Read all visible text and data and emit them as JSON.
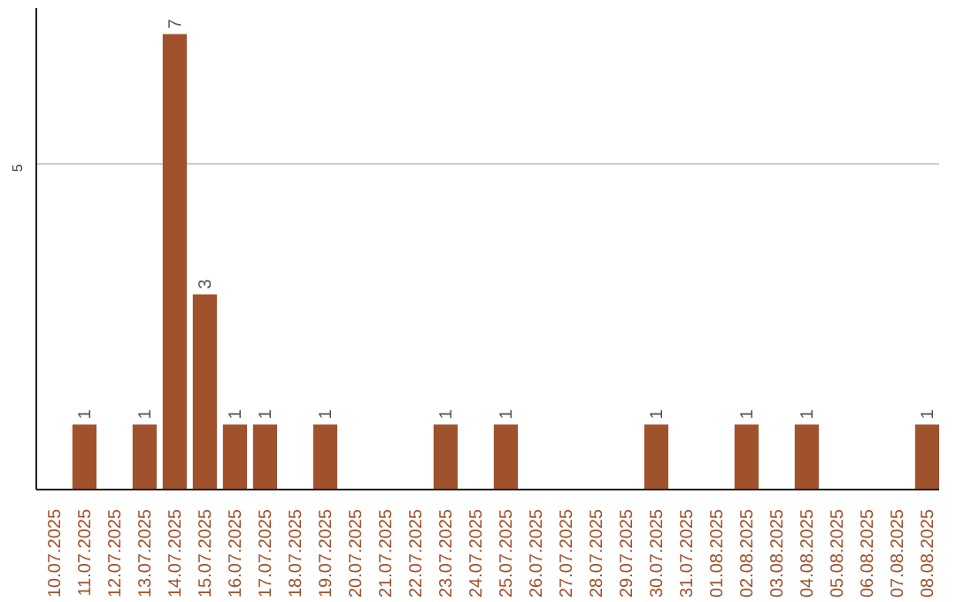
{
  "chart_data": {
    "type": "bar",
    "categories": [
      "10.07.2025",
      "11.07.2025",
      "12.07.2025",
      "13.07.2025",
      "14.07.2025",
      "15.07.2025",
      "16.07.2025",
      "17.07.2025",
      "18.07.2025",
      "19.07.2025",
      "20.07.2025",
      "21.07.2025",
      "22.07.2025",
      "23.07.2025",
      "24.07.2025",
      "25.07.2025",
      "26.07.2025",
      "27.07.2025",
      "28.07.2025",
      "29.07.2025",
      "30.07.2025",
      "31.07.2025",
      "01.08.2025",
      "02.08.2025",
      "03.08.2025",
      "04.08.2025",
      "05.08.2025",
      "06.08.2025",
      "07.08.2025",
      "08.08.2025"
    ],
    "values": [
      0,
      1,
      0,
      1,
      7,
      3,
      1,
      1,
      0,
      1,
      0,
      0,
      0,
      1,
      0,
      1,
      0,
      0,
      0,
      0,
      1,
      0,
      0,
      1,
      0,
      1,
      0,
      0,
      0,
      1
    ],
    "value_labels": [
      null,
      "1",
      null,
      "1",
      "7",
      "3",
      "1",
      "1",
      null,
      "1",
      null,
      null,
      null,
      "1",
      null,
      "1",
      null,
      null,
      null,
      null,
      "1",
      null,
      null,
      "1",
      null,
      "1",
      null,
      null,
      null,
      "1"
    ],
    "color": "#a0522d",
    "ylim": [
      0,
      7.4
    ],
    "yticks": [
      5
    ],
    "grid": "y"
  }
}
